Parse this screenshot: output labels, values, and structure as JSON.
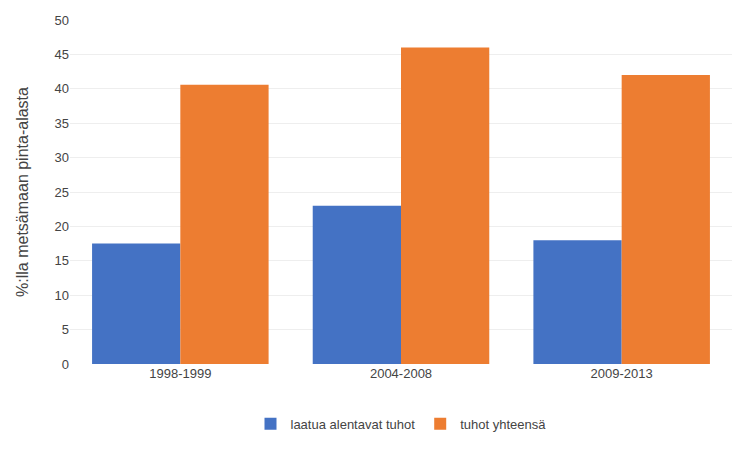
{
  "chart_data": {
    "type": "bar",
    "categories": [
      "1998-1999",
      "2004-2008",
      "2009-2013"
    ],
    "series": [
      {
        "name": "laatua alentavat tuhot",
        "color": "#4472C4",
        "values": [
          17.5,
          23.0,
          18.0
        ]
      },
      {
        "name": "tuhot yhteensä",
        "color": "#ED7D31",
        "values": [
          40.6,
          46.0,
          42.0
        ]
      }
    ],
    "ylabel": "%:lla metsämaan pinta-alasta",
    "ylim": [
      0,
      50
    ],
    "yticks": [
      0,
      5,
      10,
      15,
      20,
      25,
      30,
      35,
      40,
      45,
      50
    ],
    "grid": true,
    "legend": "bottom"
  }
}
